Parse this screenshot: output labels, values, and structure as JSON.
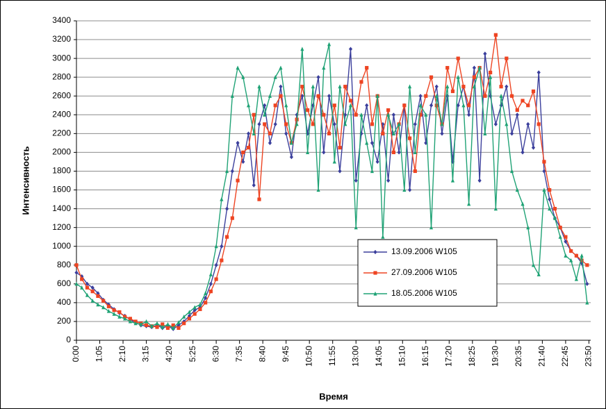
{
  "chart_data": {
    "type": "line",
    "x_label": "Время",
    "y_label": "Интенсивность",
    "x": [
      0,
      15,
      30,
      45,
      60,
      75,
      90,
      105,
      120,
      135,
      150,
      165,
      180,
      195,
      210,
      225,
      240,
      255,
      270,
      285,
      300,
      315,
      330,
      345,
      360,
      375,
      390,
      405,
      420,
      435,
      450,
      465,
      480,
      495,
      510,
      525,
      540,
      555,
      570,
      585,
      600,
      615,
      630,
      645,
      660,
      675,
      690,
      705,
      720,
      735,
      750,
      765,
      780,
      795,
      810,
      825,
      840,
      855,
      870,
      885,
      900,
      915,
      930,
      945,
      960,
      975,
      990,
      1005,
      1020,
      1035,
      1050,
      1065,
      1080,
      1095,
      1110,
      1125,
      1140,
      1155,
      1170,
      1185,
      1200,
      1215,
      1230,
      1245,
      1260,
      1275,
      1290,
      1305,
      1320,
      1335,
      1350,
      1365,
      1380,
      1395,
      1410,
      1425
    ],
    "xlim": [
      0,
      1435
    ],
    "xticks": [
      {
        "value": 0,
        "label": "0:00"
      },
      {
        "value": 65,
        "label": "1:05"
      },
      {
        "value": 130,
        "label": "2:10"
      },
      {
        "value": 195,
        "label": "3:15"
      },
      {
        "value": 260,
        "label": "4:20"
      },
      {
        "value": 325,
        "label": "5:25"
      },
      {
        "value": 390,
        "label": "6:30"
      },
      {
        "value": 455,
        "label": "7:35"
      },
      {
        "value": 520,
        "label": "8:40"
      },
      {
        "value": 585,
        "label": "9:45"
      },
      {
        "value": 650,
        "label": "10:50"
      },
      {
        "value": 715,
        "label": "11:55"
      },
      {
        "value": 780,
        "label": "13:00"
      },
      {
        "value": 845,
        "label": "14:05"
      },
      {
        "value": 910,
        "label": "15:10"
      },
      {
        "value": 975,
        "label": "16:15"
      },
      {
        "value": 1040,
        "label": "17:20"
      },
      {
        "value": 1105,
        "label": "18:25"
      },
      {
        "value": 1170,
        "label": "19:30"
      },
      {
        "value": 1235,
        "label": "20:35"
      },
      {
        "value": 1300,
        "label": "21:40"
      },
      {
        "value": 1365,
        "label": "22:45"
      },
      {
        "value": 1430,
        "label": "23:50"
      }
    ],
    "ylim": [
      0,
      3400
    ],
    "yticks": [
      0,
      200,
      400,
      600,
      800,
      1000,
      1200,
      1400,
      1600,
      1800,
      2000,
      2200,
      2400,
      2600,
      2800,
      3000,
      3200,
      3400
    ],
    "grid": true,
    "legend": "center-right",
    "series": [
      {
        "name": "13.09.2006 W105",
        "color": "#3b3f9c",
        "marker": "diamond",
        "values": [
          720,
          680,
          600,
          560,
          500,
          430,
          380,
          330,
          290,
          260,
          220,
          190,
          160,
          150,
          140,
          160,
          130,
          150,
          120,
          160,
          200,
          260,
          320,
          350,
          450,
          600,
          800,
          1000,
          1400,
          1800,
          2100,
          1900,
          2200,
          1650,
          2300,
          2500,
          2100,
          2300,
          2700,
          2200,
          1950,
          2400,
          2600,
          2200,
          2500,
          2800,
          2000,
          2600,
          2300,
          1800,
          2400,
          3100,
          1700,
          2200,
          2500,
          2100,
          1900,
          2300,
          1700,
          2400,
          2000,
          2500,
          1600,
          2300,
          2600,
          2100,
          2500,
          2700,
          2200,
          2600,
          1900,
          2500,
          2700,
          2400,
          2900,
          1700,
          3050,
          2600,
          2300,
          2500,
          2700,
          2200,
          2400,
          2000,
          2300,
          2050,
          2850,
          1800,
          1500,
          1300,
          1200,
          1050,
          950,
          900,
          820,
          600
        ]
      },
      {
        "name": "27.09.2006 W105",
        "color": "#ee4422",
        "marker": "square",
        "values": [
          800,
          650,
          560,
          520,
          470,
          420,
          360,
          320,
          300,
          250,
          230,
          200,
          180,
          160,
          150,
          140,
          170,
          130,
          160,
          130,
          180,
          230,
          280,
          330,
          400,
          520,
          650,
          850,
          1100,
          1300,
          1700,
          2000,
          2050,
          2400,
          1500,
          2300,
          2200,
          2500,
          2600,
          2300,
          2100,
          2350,
          2700,
          2450,
          2300,
          2600,
          2400,
          2200,
          2500,
          2050,
          2700,
          2550,
          2400,
          2750,
          2900,
          2300,
          2600,
          2200,
          2450,
          2000,
          2300,
          2500,
          2150,
          1800,
          2400,
          2600,
          2800,
          2500,
          2300,
          2900,
          2650,
          3000,
          2700,
          2500,
          2800,
          2900,
          2600,
          2850,
          3250,
          2700,
          3000,
          2600,
          2450,
          2550,
          2500,
          2650,
          2300,
          1900,
          1600,
          1400,
          1200,
          1100,
          950,
          900,
          850,
          800
        ]
      },
      {
        "name": "18.05.2006 W105",
        "color": "#1fa275",
        "marker": "triangle",
        "values": [
          600,
          560,
          480,
          420,
          380,
          350,
          310,
          280,
          250,
          230,
          200,
          180,
          170,
          200,
          150,
          180,
          140,
          170,
          130,
          190,
          250,
          300,
          350,
          380,
          500,
          700,
          1000,
          1500,
          1800,
          2600,
          2900,
          2800,
          2500,
          2200,
          2700,
          2400,
          2600,
          2800,
          2900,
          2500,
          2100,
          2300,
          3100,
          2000,
          2700,
          1600,
          2900,
          3150,
          1900,
          2700,
          2300,
          2500,
          1200,
          2400,
          2100,
          1800,
          2600,
          1100,
          2400,
          2200,
          2300,
          1600,
          2700,
          2000,
          2500,
          2400,
          1200,
          2600,
          2300,
          2700,
          1700,
          2800,
          2500,
          1450,
          2700,
          2900,
          2200,
          2800,
          1400,
          2600,
          2300,
          1800,
          1600,
          1450,
          1200,
          800,
          700,
          1600,
          1400,
          1300,
          1100,
          900,
          850,
          650,
          900,
          400
        ]
      }
    ]
  }
}
